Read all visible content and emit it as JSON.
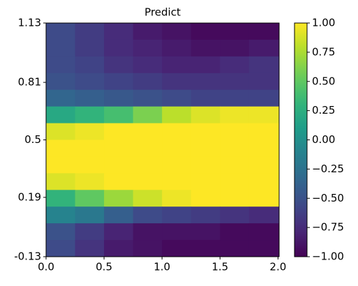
{
  "chart_data": {
    "type": "heatmap",
    "title": "Predict",
    "cmap": "viridis",
    "clim": [
      -1,
      1
    ],
    "x": [
      0.125,
      0.375,
      0.625,
      0.875,
      1.125,
      1.375,
      1.625,
      1.875
    ],
    "y": [
      1.085,
      0.995,
      0.905,
      0.815,
      0.725,
      0.635,
      0.545,
      0.455,
      0.365,
      0.275,
      0.185,
      0.095,
      0.005,
      -0.085
    ],
    "z": [
      [
        -0.55,
        -0.65,
        -0.75,
        -0.85,
        -0.9,
        -0.95,
        -0.95,
        -0.95
      ],
      [
        -0.55,
        -0.65,
        -0.75,
        -0.8,
        -0.85,
        -0.9,
        -0.9,
        -0.85
      ],
      [
        -0.55,
        -0.6,
        -0.7,
        -0.75,
        -0.8,
        -0.8,
        -0.75,
        -0.7
      ],
      [
        -0.5,
        -0.55,
        -0.6,
        -0.65,
        -0.7,
        -0.7,
        -0.7,
        -0.7
      ],
      [
        -0.35,
        -0.4,
        -0.45,
        -0.5,
        -0.55,
        -0.6,
        -0.6,
        -0.6
      ],
      [
        0.2,
        0.3,
        0.4,
        0.6,
        0.8,
        0.9,
        0.95,
        0.95
      ],
      [
        0.9,
        0.95,
        1,
        1,
        1,
        1,
        1,
        1
      ],
      [
        1,
        1,
        1,
        1,
        1,
        1,
        1,
        1
      ],
      [
        1,
        1,
        1,
        1,
        1,
        1,
        1,
        1
      ],
      [
        0.9,
        0.95,
        1,
        1,
        1,
        1,
        1,
        1
      ],
      [
        0.3,
        0.5,
        0.7,
        0.85,
        0.95,
        1,
        1,
        1
      ],
      [
        -0.1,
        -0.2,
        -0.4,
        -0.55,
        -0.6,
        -0.65,
        -0.7,
        -0.75
      ],
      [
        -0.5,
        -0.65,
        -0.8,
        -0.9,
        -0.9,
        -0.9,
        -0.95,
        -0.95
      ],
      [
        -0.55,
        -0.7,
        -0.85,
        -0.9,
        -0.95,
        -0.95,
        -0.95,
        -0.95
      ]
    ],
    "xlim": [
      0,
      2.01
    ],
    "xticks": [
      {
        "value": 0,
        "label": "0.0"
      },
      0.5,
      {
        "value": 1,
        "label": "1.0"
      },
      1.5,
      {
        "value": 2,
        "label": "2.0"
      }
    ],
    "ylim": [
      -0.13,
      1.13
    ],
    "yticks": [
      -0.13,
      0.19,
      0.5,
      0.81,
      1.13
    ],
    "colorbar_ticks": [
      {
        "value": 1,
        "label": "1.00"
      },
      {
        "value": 0.75,
        "label": "0.75"
      },
      {
        "value": 0.5,
        "label": "0.50"
      },
      {
        "value": 0.25,
        "label": "0.25"
      },
      {
        "value": 0,
        "label": "0.00"
      },
      {
        "value": -0.25,
        "label": "−0.25"
      },
      {
        "value": -0.5,
        "label": "−0.50"
      },
      {
        "value": -0.75,
        "label": "−0.75"
      },
      {
        "value": -1,
        "label": "−1.00"
      }
    ]
  }
}
